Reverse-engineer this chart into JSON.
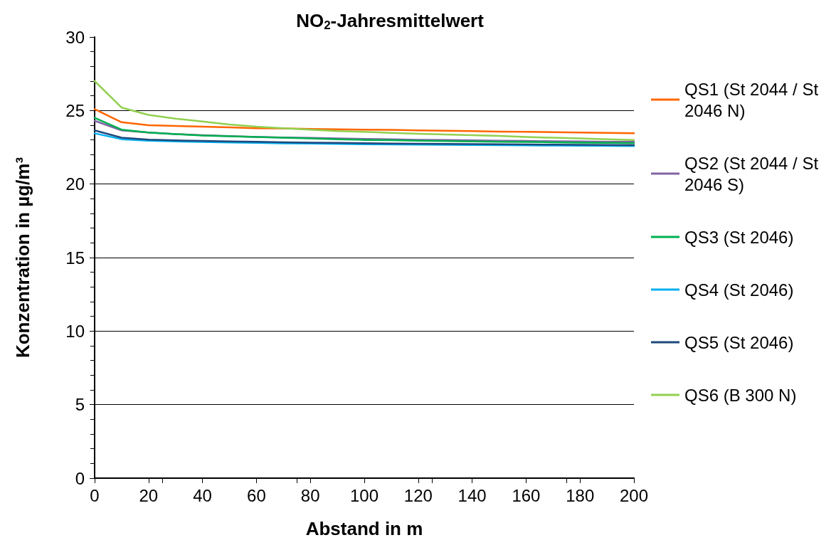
{
  "chart_data": {
    "type": "line",
    "title": "NO$_{2}$-Jahresmittelwert",
    "xlabel": "Abstand in m",
    "ylabel": "Konzentration in µg/m³",
    "x": [
      0,
      10,
      20,
      30,
      40,
      50,
      60,
      70,
      80,
      90,
      100,
      110,
      120,
      130,
      140,
      150,
      160,
      170,
      180,
      190,
      200
    ],
    "series": [
      {
        "name": "QS1 (St 2044 / St 2046 N)",
        "color": "#ff6600",
        "values": [
          25.1,
          24.2,
          24.0,
          23.95,
          23.9,
          23.85,
          23.8,
          23.78,
          23.75,
          23.72,
          23.7,
          23.68,
          23.65,
          23.62,
          23.6,
          23.57,
          23.55,
          23.53,
          23.5,
          23.48,
          23.45
        ]
      },
      {
        "name": "QS2 (St 2044 / St 2046 S)",
        "color": "#8064a2",
        "values": [
          24.3,
          23.65,
          23.5,
          23.4,
          23.32,
          23.26,
          23.2,
          23.17,
          23.14,
          23.1,
          23.07,
          23.04,
          23.01,
          22.99,
          22.97,
          22.95,
          22.93,
          22.91,
          22.9,
          22.88,
          22.87
        ]
      },
      {
        "name": "QS3 (St 2046)",
        "color": "#00b050",
        "values": [
          24.5,
          23.7,
          23.5,
          23.4,
          23.3,
          23.25,
          23.2,
          23.15,
          23.1,
          23.05,
          23.0,
          22.98,
          22.95,
          22.92,
          22.9,
          22.88,
          22.86,
          22.84,
          22.82,
          22.8,
          22.78
        ]
      },
      {
        "name": "QS4 (St 2046)",
        "color": "#00b0f0",
        "values": [
          23.45,
          23.05,
          22.95,
          22.9,
          22.86,
          22.83,
          22.8,
          22.77,
          22.75,
          22.73,
          22.71,
          22.69,
          22.68,
          22.67,
          22.66,
          22.64,
          22.63,
          22.62,
          22.61,
          22.6,
          22.58
        ]
      },
      {
        "name": "QS5 (St 2046)",
        "color": "#1f497d",
        "values": [
          23.65,
          23.15,
          23.02,
          22.97,
          22.93,
          22.9,
          22.87,
          22.84,
          22.82,
          22.8,
          22.78,
          22.76,
          22.74,
          22.73,
          22.72,
          22.7,
          22.69,
          22.68,
          22.67,
          22.66,
          22.65
        ]
      },
      {
        "name": "QS6 (B 300 N)",
        "color": "#92d050",
        "values": [
          27.0,
          25.2,
          24.7,
          24.45,
          24.25,
          24.05,
          23.9,
          23.8,
          23.7,
          23.6,
          23.55,
          23.48,
          23.42,
          23.37,
          23.32,
          23.27,
          23.2,
          23.15,
          23.1,
          23.05,
          23.0
        ]
      }
    ],
    "xlim": [
      0,
      200
    ],
    "xticks": [
      0,
      20,
      40,
      60,
      80,
      100,
      120,
      140,
      160,
      180,
      200
    ],
    "ylim": [
      0,
      30
    ],
    "yticks": [
      0,
      5,
      10,
      15,
      20,
      25,
      30
    ],
    "grid": "y",
    "legend": "right",
    "marker": "none",
    "line_style": "solid"
  }
}
